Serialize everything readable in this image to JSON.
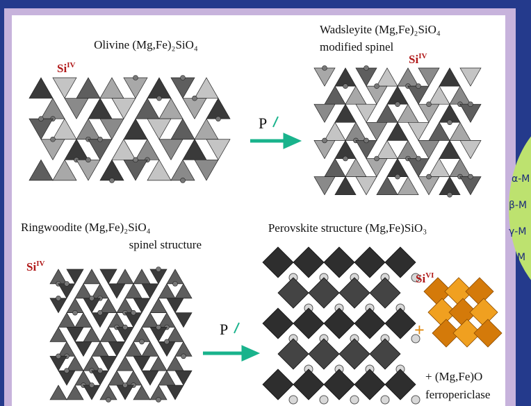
{
  "panels": [
    {
      "title": "Olivine (Mg,Fe)₂SiO₄",
      "site": {
        "element": "Si",
        "coordination": "IV"
      }
    },
    {
      "title": "Wadsleyite (Mg,Fe)₂SiO₄",
      "subtitle": "modified spinel",
      "site": {
        "element": "Si",
        "coordination": "IV"
      }
    },
    {
      "title": "Ringwoodite (Mg,Fe)₂SiO₄",
      "subtitle": "spinel structure",
      "site": {
        "element": "Si",
        "coordination": "IV"
      }
    },
    {
      "title": "Perovskite structure (Mg,Fe)SiO₃",
      "site": {
        "element": "Si",
        "coordination": "VI"
      }
    }
  ],
  "arrows": [
    {
      "label": "P"
    },
    {
      "label": "P"
    }
  ],
  "plus": "+",
  "ferropericlase": {
    "formula": "+  (Mg,Fe)O",
    "name": "ferropericlase"
  },
  "sidebar": {
    "lines": [
      "α-M",
      "β-M",
      "γ-M",
      "M"
    ]
  }
}
